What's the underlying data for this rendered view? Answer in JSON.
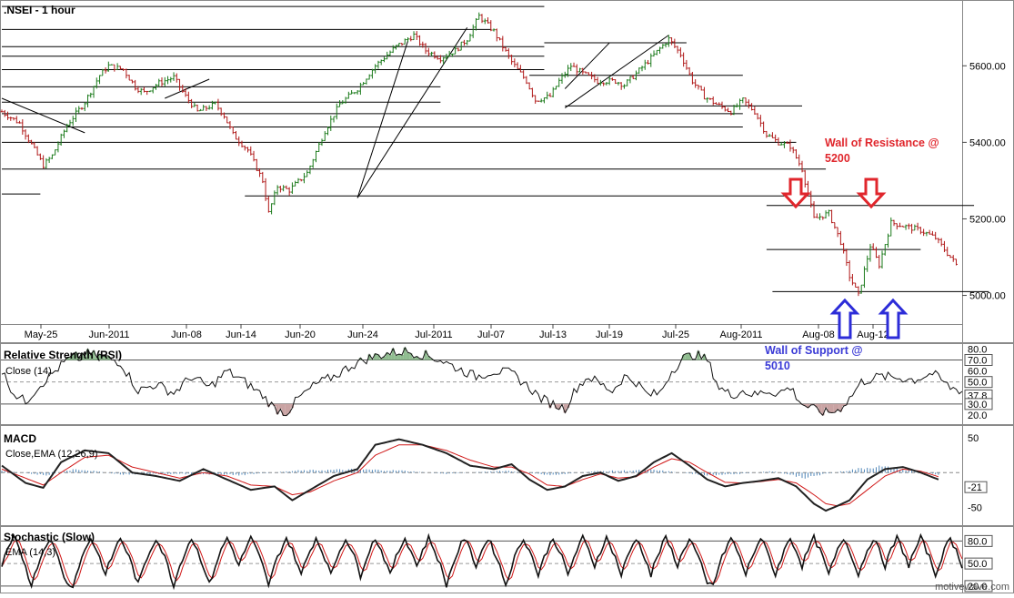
{
  "colors": {
    "up_bar": "#1a7a1a",
    "down_bar": "#b01818",
    "trendline": "#000000",
    "resistance_text": "#e0262c",
    "support_text": "#3a3ad6",
    "resistance_arrow": "#e0262c",
    "support_arrow": "#2c2cd8",
    "rsi_overbought_fill": "#8fbc8f",
    "rsi_oversold_fill": "#c9a3a3",
    "macd_line": "#222222",
    "signal_line": "#d01818",
    "histogram": "#4f86b8",
    "stoch_k": "#111111",
    "stoch_d": "#d01818"
  },
  "chart_data": [
    {
      "type": "bar",
      "title": ".NSEI - 1 hour",
      "ylim": [
        4930,
        5760
      ],
      "y_ticks": [
        "5600.00",
        "5400.00",
        "5200.00",
        "5000.00"
      ],
      "y_tick_values": [
        5600,
        5400,
        5200,
        5000
      ],
      "x_ticks": [
        "May-25",
        "Jun-2011",
        "Jun-08",
        "Jun-14",
        "Jun-20",
        "Jun-24",
        "Jul-2011",
        "Jul-07",
        "Jul-13",
        "Jul-19",
        "Jul-25",
        "Aug-2011",
        "Aug-08",
        "Aug-12"
      ],
      "price_path": [
        [
          0,
          5480
        ],
        [
          6,
          5450
        ],
        [
          11,
          5380
        ],
        [
          14,
          5340
        ],
        [
          17,
          5365
        ],
        [
          22,
          5445
        ],
        [
          28,
          5505
        ],
        [
          33,
          5575
        ],
        [
          36,
          5600
        ],
        [
          41,
          5590
        ],
        [
          45,
          5545
        ],
        [
          48,
          5530
        ],
        [
          53,
          5555
        ],
        [
          58,
          5570
        ],
        [
          62,
          5520
        ],
        [
          66,
          5480
        ],
        [
          72,
          5500
        ],
        [
          75,
          5470
        ],
        [
          78,
          5420
        ],
        [
          83,
          5380
        ],
        [
          88,
          5300
        ],
        [
          90,
          5215
        ],
        [
          93,
          5285
        ],
        [
          97,
          5275
        ],
        [
          103,
          5320
        ],
        [
          109,
          5430
        ],
        [
          114,
          5500
        ],
        [
          120,
          5540
        ],
        [
          126,
          5600
        ],
        [
          133,
          5650
        ],
        [
          139,
          5680
        ],
        [
          143,
          5640
        ],
        [
          148,
          5620
        ],
        [
          153,
          5640
        ],
        [
          157,
          5670
        ],
        [
          161,
          5730
        ],
        [
          166,
          5690
        ],
        [
          172,
          5610
        ],
        [
          177,
          5560
        ],
        [
          180,
          5510
        ],
        [
          185,
          5520
        ],
        [
          188,
          5560
        ],
        [
          192,
          5600
        ],
        [
          196,
          5580
        ],
        [
          201,
          5560
        ],
        [
          207,
          5560
        ],
        [
          210,
          5550
        ],
        [
          214,
          5580
        ],
        [
          219,
          5620
        ],
        [
          225,
          5670
        ],
        [
          229,
          5630
        ],
        [
          233,
          5560
        ],
        [
          237,
          5520
        ],
        [
          241,
          5500
        ],
        [
          246,
          5480
        ],
        [
          250,
          5510
        ],
        [
          254,
          5480
        ],
        [
          258,
          5420
        ],
        [
          262,
          5400
        ],
        [
          266,
          5390
        ],
        [
          270,
          5330
        ],
        [
          274,
          5200
        ],
        [
          279,
          5215
        ],
        [
          283,
          5140
        ],
        [
          286,
          5050
        ],
        [
          289,
          5000
        ],
        [
          293,
          5130
        ],
        [
          296,
          5080
        ],
        [
          300,
          5190
        ],
        [
          305,
          5180
        ],
        [
          310,
          5170
        ],
        [
          315,
          5150
        ],
        [
          319,
          5110
        ],
        [
          322,
          5080
        ]
      ],
      "horizontal_lines": [
        {
          "v": 5755,
          "x0": 0,
          "x1": 183
        },
        {
          "v": 5695,
          "x0": 0,
          "x1": 165
        },
        {
          "v": 5650,
          "x0": 0,
          "x1": 183
        },
        {
          "v": 5625,
          "x0": 0,
          "x1": 183
        },
        {
          "v": 5590,
          "x0": 0,
          "x1": 183
        },
        {
          "v": 5545,
          "x0": 0,
          "x1": 148
        },
        {
          "v": 5505,
          "x0": 0,
          "x1": 148
        },
        {
          "v": 5475,
          "x0": 0,
          "x1": 250
        },
        {
          "v": 5440,
          "x0": 0,
          "x1": 250
        },
        {
          "v": 5400,
          "x0": 0,
          "x1": 268
        },
        {
          "v": 5330,
          "x0": 0,
          "x1": 278
        },
        {
          "v": 5265,
          "x0": 0,
          "x1": 13
        },
        {
          "v": 5260,
          "x0": 82,
          "x1": 290
        },
        {
          "v": 5660,
          "x0": 183,
          "x1": 231
        },
        {
          "v": 5575,
          "x0": 178,
          "x1": 250
        },
        {
          "v": 5495,
          "x0": 190,
          "x1": 270
        },
        {
          "v": 5235,
          "x0": 258,
          "x1": 328
        },
        {
          "v": 5120,
          "x0": 258,
          "x1": 310
        },
        {
          "v": 5010,
          "x0": 260,
          "x1": 333
        }
      ],
      "trend_lines": [
        {
          "x0": 0,
          "y0": 5515,
          "x1": 28,
          "y1": 5425
        },
        {
          "x0": 55,
          "y0": 5515,
          "x1": 70,
          "y1": 5565
        },
        {
          "x0": 120,
          "y0": 5255,
          "x1": 157,
          "y1": 5700
        },
        {
          "x0": 120,
          "y0": 5255,
          "x1": 137,
          "y1": 5665
        },
        {
          "x0": 190,
          "y0": 5490,
          "x1": 225,
          "y1": 5680
        },
        {
          "x0": 190,
          "y0": 5540,
          "x1": 205,
          "y1": 5660
        }
      ],
      "annotations": {
        "resistance_line1": "Wall of Resistance @",
        "resistance_line2": "5200",
        "support_line1": "Wall of Support @",
        "support_line2": "5010"
      }
    },
    {
      "type": "line",
      "title": "Relative Strength (RSI)",
      "subtitle": "Close (14)",
      "ylim": [
        15,
        82
      ],
      "y_ticks": [
        "80.0",
        "70.0",
        "60.0",
        "50.0",
        "37.8",
        "30.0",
        "20.0"
      ],
      "y_tick_values": [
        80,
        70,
        60,
        50,
        37.8,
        30,
        20
      ],
      "levels": [
        70,
        50,
        30
      ],
      "path": [
        [
          0,
          60
        ],
        [
          4,
          40
        ],
        [
          8,
          32
        ],
        [
          12,
          45
        ],
        [
          16,
          55
        ],
        [
          22,
          70
        ],
        [
          28,
          76
        ],
        [
          34,
          73
        ],
        [
          40,
          68
        ],
        [
          46,
          42
        ],
        [
          52,
          48
        ],
        [
          58,
          40
        ],
        [
          64,
          55
        ],
        [
          70,
          45
        ],
        [
          76,
          60
        ],
        [
          82,
          50
        ],
        [
          88,
          38
        ],
        [
          92,
          26
        ],
        [
          96,
          22
        ],
        [
          100,
          35
        ],
        [
          106,
          48
        ],
        [
          112,
          55
        ],
        [
          118,
          65
        ],
        [
          124,
          72
        ],
        [
          130,
          76
        ],
        [
          136,
          78
        ],
        [
          142,
          75
        ],
        [
          148,
          70
        ],
        [
          154,
          62
        ],
        [
          160,
          55
        ],
        [
          166,
          60
        ],
        [
          172,
          58
        ],
        [
          178,
          45
        ],
        [
          182,
          35
        ],
        [
          186,
          30
        ],
        [
          190,
          26
        ],
        [
          194,
          45
        ],
        [
          198,
          55
        ],
        [
          202,
          48
        ],
        [
          206,
          42
        ],
        [
          210,
          55
        ],
        [
          214,
          50
        ],
        [
          218,
          38
        ],
        [
          222,
          40
        ],
        [
          226,
          60
        ],
        [
          230,
          72
        ],
        [
          234,
          75
        ],
        [
          238,
          70
        ],
        [
          242,
          45
        ],
        [
          246,
          38
        ],
        [
          250,
          42
        ],
        [
          254,
          38
        ],
        [
          258,
          42
        ],
        [
          262,
          40
        ],
        [
          266,
          45
        ],
        [
          270,
          30
        ],
        [
          274,
          25
        ],
        [
          278,
          22
        ],
        [
          282,
          24
        ],
        [
          286,
          35
        ],
        [
          290,
          50
        ],
        [
          296,
          55
        ],
        [
          302,
          54
        ],
        [
          308,
          52
        ],
        [
          314,
          58
        ],
        [
          320,
          45
        ],
        [
          324,
          42
        ]
      ]
    },
    {
      "type": "line",
      "title": "MACD",
      "subtitle": "Close,EMA (12,26,9)",
      "ylim": [
        -72,
        62
      ],
      "y_ticks": [
        "50",
        "-21",
        "-50"
      ],
      "y_tick_values": [
        50,
        -21,
        -50
      ],
      "macd": [
        [
          0,
          10
        ],
        [
          8,
          -15
        ],
        [
          14,
          -22
        ],
        [
          20,
          15
        ],
        [
          28,
          32
        ],
        [
          36,
          28
        ],
        [
          44,
          0
        ],
        [
          52,
          -5
        ],
        [
          60,
          -12
        ],
        [
          68,
          5
        ],
        [
          76,
          -10
        ],
        [
          84,
          -25
        ],
        [
          92,
          -20
        ],
        [
          98,
          -40
        ],
        [
          104,
          -25
        ],
        [
          112,
          -5
        ],
        [
          120,
          5
        ],
        [
          126,
          40
        ],
        [
          134,
          48
        ],
        [
          142,
          40
        ],
        [
          150,
          28
        ],
        [
          158,
          10
        ],
        [
          166,
          5
        ],
        [
          172,
          12
        ],
        [
          178,
          -10
        ],
        [
          184,
          -25
        ],
        [
          190,
          -20
        ],
        [
          196,
          -5
        ],
        [
          202,
          0
        ],
        [
          208,
          -12
        ],
        [
          214,
          -5
        ],
        [
          220,
          15
        ],
        [
          226,
          28
        ],
        [
          232,
          10
        ],
        [
          238,
          -10
        ],
        [
          244,
          -20
        ],
        [
          250,
          -15
        ],
        [
          256,
          -12
        ],
        [
          262,
          -8
        ],
        [
          268,
          -20
        ],
        [
          274,
          -45
        ],
        [
          278,
          -55
        ],
        [
          282,
          -48
        ],
        [
          286,
          -40
        ],
        [
          292,
          -10
        ],
        [
          298,
          5
        ],
        [
          304,
          8
        ],
        [
          310,
          0
        ],
        [
          316,
          -10
        ]
      ],
      "signal": [
        [
          0,
          5
        ],
        [
          8,
          -8
        ],
        [
          14,
          -18
        ],
        [
          20,
          0
        ],
        [
          28,
          22
        ],
        [
          36,
          25
        ],
        [
          44,
          8
        ],
        [
          52,
          0
        ],
        [
          60,
          -8
        ],
        [
          68,
          0
        ],
        [
          76,
          -5
        ],
        [
          84,
          -18
        ],
        [
          92,
          -20
        ],
        [
          98,
          -32
        ],
        [
          104,
          -28
        ],
        [
          112,
          -12
        ],
        [
          120,
          0
        ],
        [
          126,
          25
        ],
        [
          134,
          40
        ],
        [
          142,
          40
        ],
        [
          150,
          32
        ],
        [
          158,
          18
        ],
        [
          166,
          8
        ],
        [
          172,
          8
        ],
        [
          178,
          -2
        ],
        [
          184,
          -18
        ],
        [
          190,
          -20
        ],
        [
          196,
          -10
        ],
        [
          202,
          -2
        ],
        [
          208,
          -8
        ],
        [
          214,
          -6
        ],
        [
          220,
          8
        ],
        [
          226,
          20
        ],
        [
          232,
          15
        ],
        [
          238,
          0
        ],
        [
          244,
          -14
        ],
        [
          250,
          -15
        ],
        [
          256,
          -13
        ],
        [
          262,
          -10
        ],
        [
          268,
          -15
        ],
        [
          274,
          -32
        ],
        [
          278,
          -45
        ],
        [
          282,
          -48
        ],
        [
          286,
          -45
        ],
        [
          292,
          -25
        ],
        [
          298,
          -5
        ],
        [
          304,
          5
        ],
        [
          310,
          2
        ],
        [
          316,
          -6
        ]
      ],
      "histogram_amplitude": [
        [
          0,
          3
        ],
        [
          15,
          -4
        ],
        [
          25,
          6
        ],
        [
          40,
          -3
        ],
        [
          60,
          -2
        ],
        [
          80,
          -4
        ],
        [
          100,
          3
        ],
        [
          120,
          5
        ],
        [
          135,
          3
        ],
        [
          150,
          -2
        ],
        [
          170,
          3
        ],
        [
          185,
          -4
        ],
        [
          200,
          2
        ],
        [
          220,
          4
        ],
        [
          240,
          -5
        ],
        [
          260,
          2
        ],
        [
          270,
          -8
        ],
        [
          285,
          3
        ],
        [
          295,
          10
        ],
        [
          305,
          4
        ],
        [
          316,
          -3
        ]
      ]
    },
    {
      "type": "line",
      "title": "Stochastic (Slow)",
      "subtitle": "EMA (14,3)",
      "ylim": [
        15,
        95
      ],
      "y_ticks": [
        "80.0",
        "50.0",
        "20.0"
      ],
      "y_tick_values": [
        80,
        50,
        20
      ],
      "levels": [
        80,
        50,
        20
      ],
      "cycle_peaks_x": [
        4,
        16,
        30,
        40,
        52,
        64,
        76,
        84,
        96,
        106,
        116,
        126,
        136,
        144,
        156,
        164,
        176,
        186,
        196,
        204,
        214,
        224,
        232,
        246,
        256,
        266,
        274,
        284,
        294,
        302,
        310,
        320
      ]
    }
  ],
  "watermark": "motivewave.com"
}
